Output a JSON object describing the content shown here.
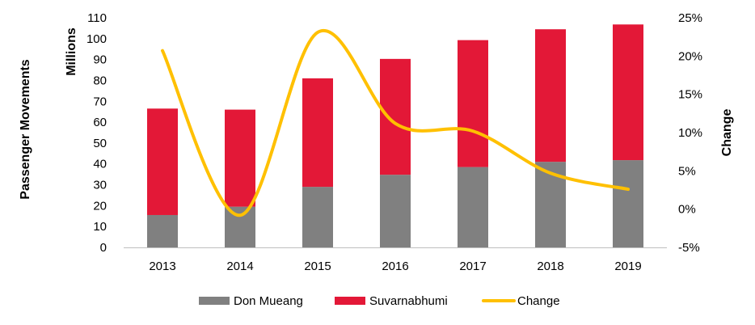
{
  "chart_data": {
    "type": "bar",
    "categories": [
      "2013",
      "2014",
      "2015",
      "2016",
      "2017",
      "2018",
      "2019"
    ],
    "series": [
      {
        "name": "Don Mueang",
        "kind": "bar",
        "stack": "passengers",
        "axis": "left",
        "color": "#808080",
        "values": [
          15.5,
          19.5,
          29,
          34.8,
          38.5,
          41,
          41.8
        ]
      },
      {
        "name": "Suvarnabhumi",
        "kind": "bar",
        "stack": "passengers",
        "axis": "left",
        "color": "#E31837",
        "values": [
          51,
          46.5,
          52,
          55.5,
          60.8,
          63.5,
          65
        ]
      },
      {
        "name": "Change",
        "kind": "line",
        "axis": "right",
        "color": "#FFC000",
        "smooth": true,
        "values": [
          0.207,
          -0.008,
          0.231,
          0.112,
          0.102,
          0.047,
          0.026
        ]
      }
    ],
    "ylabel": "Passenger Movements",
    "ylabel_unit": "Millions",
    "y2label": "Change",
    "ylim": [
      0,
      110
    ],
    "ytick_step": 10,
    "y2lim": [
      -0.05,
      0.25
    ],
    "y2ticks": [
      "-5%",
      "0%",
      "5%",
      "10%",
      "15%",
      "20%",
      "25%"
    ],
    "grid": false,
    "legend_position": "bottom"
  }
}
